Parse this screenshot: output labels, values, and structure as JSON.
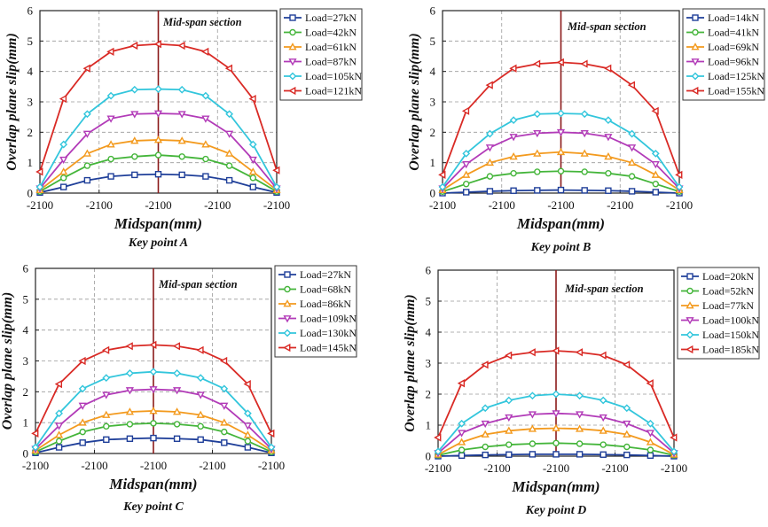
{
  "chart_data": [
    {
      "type": "line",
      "title": "Key point A",
      "xlabel": "Midspan(mm)",
      "ylabel": "Overlap plane slip(mm)",
      "annotation": "Mid-span section",
      "x_tick_labels": [
        "-2100",
        "-2100",
        "-2100",
        "-2100",
        "-2100"
      ],
      "x": [
        0,
        1,
        2,
        3,
        4,
        5,
        6,
        7,
        8,
        9,
        10
      ],
      "xlim": [
        0,
        10
      ],
      "ylim": [
        0,
        6
      ],
      "yticks": [
        0,
        1,
        2,
        3,
        4,
        5,
        6
      ],
      "grid": true,
      "legend_position": "top-right",
      "series": [
        {
          "name": "Load=27kN",
          "color": "#1f3f99",
          "marker": "square",
          "values": [
            0.02,
            0.2,
            0.42,
            0.55,
            0.6,
            0.62,
            0.6,
            0.55,
            0.42,
            0.2,
            0.02
          ]
        },
        {
          "name": "Load=42kN",
          "color": "#44b53a",
          "marker": "circle",
          "values": [
            0.05,
            0.5,
            0.9,
            1.12,
            1.2,
            1.25,
            1.2,
            1.12,
            0.9,
            0.5,
            0.05
          ]
        },
        {
          "name": "Load=61kN",
          "color": "#f39a1e",
          "marker": "triangle-up",
          "values": [
            0.1,
            0.7,
            1.3,
            1.6,
            1.72,
            1.75,
            1.72,
            1.6,
            1.3,
            0.7,
            0.1
          ]
        },
        {
          "name": "Load=87kN",
          "color": "#b23bb8",
          "marker": "triangle-down",
          "values": [
            0.15,
            1.1,
            1.95,
            2.45,
            2.6,
            2.62,
            2.6,
            2.45,
            1.95,
            1.1,
            0.15
          ]
        },
        {
          "name": "Load=105kN",
          "color": "#33c6dc",
          "marker": "diamond",
          "values": [
            0.2,
            1.6,
            2.6,
            3.2,
            3.4,
            3.42,
            3.4,
            3.2,
            2.6,
            1.6,
            0.2
          ]
        },
        {
          "name": "Load=121kN",
          "color": "#d92a25",
          "marker": "triangle-left",
          "values": [
            0.7,
            3.1,
            4.1,
            4.65,
            4.85,
            4.9,
            4.85,
            4.65,
            4.1,
            3.1,
            0.75
          ]
        }
      ]
    },
    {
      "type": "line",
      "title": "Key point B",
      "xlabel": "Midspan(mm)",
      "ylabel": "Overlap plane slip(mm)",
      "annotation": "Mid-span section",
      "x_tick_labels": [
        "-2100",
        "-2100",
        "-2100",
        "-2100",
        "-2100"
      ],
      "x": [
        0,
        1,
        2,
        3,
        4,
        5,
        6,
        7,
        8,
        9,
        10
      ],
      "xlim": [
        0,
        10
      ],
      "ylim": [
        0,
        6
      ],
      "yticks": [
        0,
        1,
        2,
        3,
        4,
        5,
        6
      ],
      "grid": true,
      "legend_position": "top-right",
      "series": [
        {
          "name": "Load=14kN",
          "color": "#1f3f99",
          "marker": "square",
          "values": [
            0.0,
            0.03,
            0.06,
            0.08,
            0.09,
            0.1,
            0.09,
            0.08,
            0.06,
            0.03,
            0.0
          ]
        },
        {
          "name": "Load=41kN",
          "color": "#44b53a",
          "marker": "circle",
          "values": [
            0.05,
            0.3,
            0.55,
            0.65,
            0.7,
            0.72,
            0.7,
            0.65,
            0.55,
            0.3,
            0.05
          ]
        },
        {
          "name": "Load=69kN",
          "color": "#f39a1e",
          "marker": "triangle-up",
          "values": [
            0.1,
            0.6,
            1.0,
            1.2,
            1.3,
            1.35,
            1.3,
            1.2,
            1.0,
            0.6,
            0.1
          ]
        },
        {
          "name": "Load=96kN",
          "color": "#b23bb8",
          "marker": "triangle-down",
          "values": [
            0.15,
            0.95,
            1.5,
            1.85,
            1.97,
            2.0,
            1.97,
            1.85,
            1.5,
            0.95,
            0.15
          ]
        },
        {
          "name": "Load=125kN",
          "color": "#33c6dc",
          "marker": "diamond",
          "values": [
            0.2,
            1.3,
            1.95,
            2.4,
            2.6,
            2.62,
            2.6,
            2.4,
            1.95,
            1.3,
            0.2
          ]
        },
        {
          "name": "Load=155kN",
          "color": "#d92a25",
          "marker": "triangle-left",
          "values": [
            0.6,
            2.7,
            3.55,
            4.1,
            4.25,
            4.3,
            4.25,
            4.1,
            3.55,
            2.7,
            0.6
          ]
        }
      ]
    },
    {
      "type": "line",
      "title": "Key point C",
      "xlabel": "Midspan(mm)",
      "ylabel": "Overlap plane slip(mm)",
      "annotation": "Mid-span section",
      "x_tick_labels": [
        "-2100",
        "-2100",
        "-2100",
        "-2100",
        "-2100"
      ],
      "x": [
        0,
        1,
        2,
        3,
        4,
        5,
        6,
        7,
        8,
        9,
        10
      ],
      "xlim": [
        0,
        10
      ],
      "ylim": [
        0,
        6
      ],
      "yticks": [
        0,
        1,
        2,
        3,
        4,
        5,
        6
      ],
      "grid": true,
      "legend_position": "top-right",
      "series": [
        {
          "name": "Load=27kN",
          "color": "#1f3f99",
          "marker": "square",
          "values": [
            0.02,
            0.2,
            0.35,
            0.45,
            0.48,
            0.5,
            0.48,
            0.45,
            0.35,
            0.2,
            0.02
          ]
        },
        {
          "name": "Load=68kN",
          "color": "#44b53a",
          "marker": "circle",
          "values": [
            0.05,
            0.4,
            0.7,
            0.88,
            0.95,
            0.98,
            0.95,
            0.88,
            0.7,
            0.4,
            0.05
          ]
        },
        {
          "name": "Load=86kN",
          "color": "#f39a1e",
          "marker": "triangle-up",
          "values": [
            0.1,
            0.6,
            1.0,
            1.25,
            1.35,
            1.38,
            1.35,
            1.25,
            1.0,
            0.6,
            0.1
          ]
        },
        {
          "name": "Load=109kN",
          "color": "#b23bb8",
          "marker": "triangle-down",
          "values": [
            0.15,
            0.9,
            1.55,
            1.9,
            2.05,
            2.08,
            2.05,
            1.9,
            1.55,
            0.9,
            0.15
          ]
        },
        {
          "name": "Load=130kN",
          "color": "#33c6dc",
          "marker": "diamond",
          "values": [
            0.2,
            1.3,
            2.1,
            2.45,
            2.6,
            2.65,
            2.6,
            2.45,
            2.1,
            1.3,
            0.2
          ]
        },
        {
          "name": "Load=145kN",
          "color": "#d92a25",
          "marker": "triangle-left",
          "values": [
            0.65,
            2.25,
            3.0,
            3.35,
            3.48,
            3.52,
            3.48,
            3.35,
            3.0,
            2.25,
            0.65
          ]
        }
      ]
    },
    {
      "type": "line",
      "title": "Key point D",
      "xlabel": "Midspan(mm)",
      "ylabel": "Overlap plane slip(mm)",
      "annotation": "Mid-span section",
      "x_tick_labels": [
        "-2100",
        "-2100",
        "-2100",
        "-2100",
        "-2100"
      ],
      "x": [
        0,
        1,
        2,
        3,
        4,
        5,
        6,
        7,
        8,
        9,
        10
      ],
      "xlim": [
        0,
        10
      ],
      "ylim": [
        0,
        6
      ],
      "yticks": [
        0,
        1,
        2,
        3,
        4,
        5,
        6
      ],
      "grid": true,
      "legend_position": "top-right",
      "series": [
        {
          "name": "Load=20kN",
          "color": "#1f3f99",
          "marker": "square",
          "values": [
            0.0,
            0.02,
            0.04,
            0.05,
            0.06,
            0.06,
            0.06,
            0.05,
            0.04,
            0.02,
            0.0
          ]
        },
        {
          "name": "Load=52kN",
          "color": "#44b53a",
          "marker": "circle",
          "values": [
            0.03,
            0.2,
            0.3,
            0.37,
            0.4,
            0.42,
            0.4,
            0.37,
            0.3,
            0.2,
            0.03
          ]
        },
        {
          "name": "Load=77kN",
          "color": "#f39a1e",
          "marker": "triangle-up",
          "values": [
            0.05,
            0.45,
            0.7,
            0.82,
            0.88,
            0.9,
            0.88,
            0.82,
            0.7,
            0.45,
            0.05
          ]
        },
        {
          "name": "Load=100kN",
          "color": "#b23bb8",
          "marker": "triangle-down",
          "values": [
            0.1,
            0.75,
            1.05,
            1.25,
            1.35,
            1.38,
            1.35,
            1.25,
            1.05,
            0.75,
            0.1
          ]
        },
        {
          "name": "Load=150kN",
          "color": "#33c6dc",
          "marker": "diamond",
          "values": [
            0.15,
            1.05,
            1.55,
            1.8,
            1.95,
            2.0,
            1.95,
            1.8,
            1.55,
            1.05,
            0.15
          ]
        },
        {
          "name": "Load=185kN",
          "color": "#d92a25",
          "marker": "triangle-left",
          "values": [
            0.6,
            2.35,
            2.95,
            3.25,
            3.35,
            3.4,
            3.35,
            3.25,
            2.95,
            2.35,
            0.6
          ]
        }
      ]
    }
  ]
}
